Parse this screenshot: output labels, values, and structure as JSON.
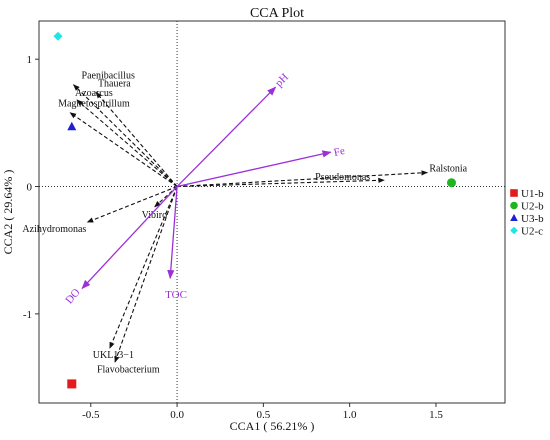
{
  "chart_data": {
    "type": "scatter",
    "title": "CCA Plot",
    "xlabel": "CCA1 ( 56.21% )",
    "ylabel": "CCA2 ( 29.64% )",
    "xlim": [
      -0.8,
      1.9
    ],
    "ylim": [
      -1.7,
      1.3
    ],
    "xticks": [
      -0.5,
      0.0,
      0.5,
      1.0,
      1.5
    ],
    "xtick_labels": [
      "-0.5",
      "0.0",
      "0.5",
      "1.0",
      "1.5"
    ],
    "yticks": [
      -1,
      0,
      1
    ],
    "ytick_labels": [
      "-1",
      "0",
      "1"
    ],
    "grid": false,
    "zero_lines": true,
    "legend_position": "right",
    "species": [
      {
        "name": "Ralstonia",
        "x": 1.45,
        "y": 0.11
      },
      {
        "name": "Pseudomonas",
        "x": 1.2,
        "y": 0.05
      },
      {
        "name": "Paenibacillus",
        "x": -0.6,
        "y": 0.8
      },
      {
        "name": "Thauera",
        "x": -0.47,
        "y": 0.74
      },
      {
        "name": "Azoarcus",
        "x": -0.58,
        "y": 0.68
      },
      {
        "name": "Magnetospirillum",
        "x": -0.62,
        "y": 0.58
      },
      {
        "name": "Vibiro",
        "x": -0.13,
        "y": -0.16
      },
      {
        "name": "Azihydromonas",
        "x": -0.52,
        "y": -0.28
      },
      {
        "name": "UKL13−1",
        "x": -0.39,
        "y": -1.27
      },
      {
        "name": "Flavobacterium",
        "x": -0.36,
        "y": -1.38
      }
    ],
    "environment": [
      {
        "name": "pH",
        "x": 0.57,
        "y": 0.78
      },
      {
        "name": "Fe",
        "x": 0.89,
        "y": 0.27
      },
      {
        "name": "TOC",
        "x": -0.04,
        "y": -0.72
      },
      {
        "name": "DO",
        "x": -0.55,
        "y": -0.8
      }
    ],
    "samples": [
      {
        "name": "U1-b",
        "x": -0.61,
        "y": -1.55,
        "marker": "square",
        "color": "#e41a1c"
      },
      {
        "name": "U2-b",
        "x": 1.59,
        "y": 0.03,
        "marker": "circle",
        "color": "#1fb51f"
      },
      {
        "name": "U3-b",
        "x": -0.61,
        "y": 0.47,
        "marker": "triangle",
        "color": "#1f1fd6"
      },
      {
        "name": "U2-c",
        "x": -0.69,
        "y": 1.18,
        "marker": "diamond",
        "color": "#1ee6e6"
      }
    ],
    "colors": {
      "environment_arrow": "#9b30d9",
      "species_arrow": "#111111"
    }
  }
}
